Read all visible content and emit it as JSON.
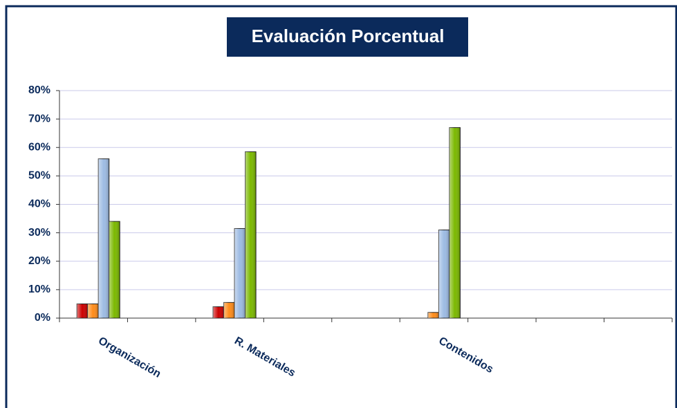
{
  "chart_data": {
    "type": "bar",
    "title": "Evaluación Porcentual",
    "categories": [
      "Organización",
      null,
      "R. Materiales",
      null,
      null,
      "Contenidos",
      null,
      null,
      null
    ],
    "series": [
      {
        "color": "#cc0000",
        "values": [
          5,
          null,
          4,
          null,
          null,
          0,
          null,
          null,
          null
        ]
      },
      {
        "color": "#ff8c1a",
        "values": [
          5,
          null,
          5.5,
          null,
          null,
          2,
          null,
          null,
          null
        ]
      },
      {
        "color": "#9dbbe3",
        "values": [
          56,
          null,
          31.5,
          null,
          null,
          31,
          null,
          null,
          null
        ]
      },
      {
        "color": "#7bb800",
        "values": [
          34,
          null,
          58.5,
          null,
          null,
          67,
          null,
          null,
          null
        ]
      }
    ],
    "ylim": [
      0,
      80
    ],
    "yticks": [
      {
        "value": 0,
        "label": "0%"
      },
      {
        "value": 10,
        "label": "10%"
      },
      {
        "value": 20,
        "label": "20%"
      },
      {
        "value": 30,
        "label": "30%"
      },
      {
        "value": 40,
        "label": "40%"
      },
      {
        "value": 50,
        "label": "50%"
      },
      {
        "value": 60,
        "label": "60%"
      },
      {
        "value": 70,
        "label": "70%"
      },
      {
        "value": 80,
        "label": "80%"
      }
    ],
    "grid": true
  }
}
